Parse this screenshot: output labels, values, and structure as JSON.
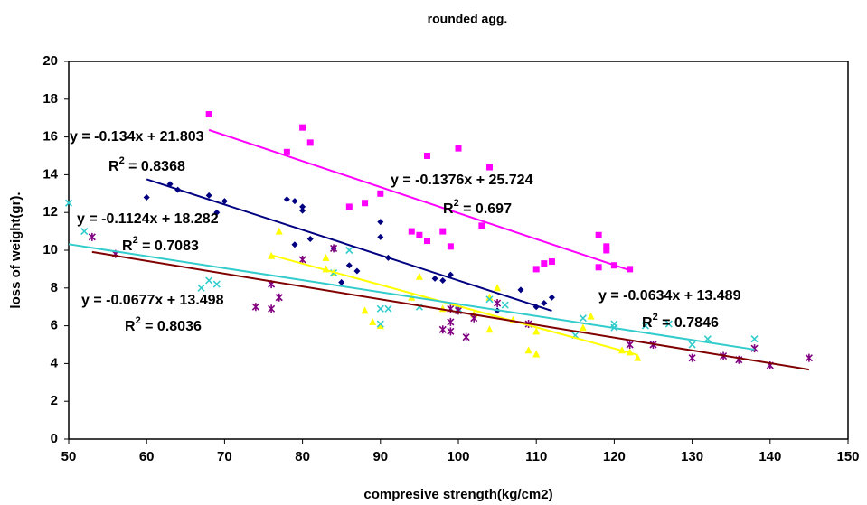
{
  "chart_data": {
    "type": "scatter",
    "title": "rounded agg.",
    "x_label": "compresive strength(kg/cm2)",
    "y_label": "loss of weight(gr).",
    "xlim": [
      50,
      150
    ],
    "xticks": [
      50,
      60,
      70,
      80,
      90,
      100,
      110,
      120,
      130,
      140,
      150
    ],
    "ylim": [
      0,
      20
    ],
    "yticks": [
      0,
      2,
      4,
      6,
      8,
      10,
      12,
      14,
      16,
      18,
      20
    ],
    "grid": false,
    "series": [
      {
        "color": "#ff00ff",
        "marker": "square",
        "x": [
          68,
          78,
          80,
          81,
          86,
          88,
          90,
          94,
          95,
          96,
          96,
          98,
          99,
          100,
          103,
          104,
          110,
          111,
          112,
          118,
          118,
          119,
          119,
          120,
          122
        ],
        "values": [
          17.2,
          15.2,
          16.5,
          15.7,
          12.3,
          12.5,
          13.0,
          11.0,
          10.8,
          10.5,
          15.0,
          11.0,
          10.2,
          15.4,
          11.3,
          14.4,
          9.0,
          9.3,
          9.4,
          10.8,
          9.1,
          10.2,
          10.0,
          9.2,
          9.0
        ],
        "trend": {
          "x": [
            68,
            122
          ],
          "values": [
            16.37,
            8.94
          ]
        },
        "annotation": {
          "equation": "y = -0.1376x + 25.724",
          "r2": [
            "R",
            "2",
            " = 0.697"
          ]
        }
      },
      {
        "color": "#000080",
        "marker": "diamond",
        "x": [
          60,
          63,
          64,
          68,
          69,
          70,
          78,
          79,
          79,
          80,
          80,
          81,
          84,
          85,
          86,
          87,
          90,
          90,
          91,
          97,
          98,
          99,
          105,
          108,
          110,
          111,
          112
        ],
        "values": [
          12.8,
          13.5,
          13.2,
          12.9,
          12.0,
          12.6,
          12.7,
          12.6,
          10.3,
          12.3,
          12.1,
          10.6,
          10.1,
          8.3,
          9.2,
          8.9,
          11.5,
          10.7,
          9.6,
          8.5,
          8.4,
          8.7,
          6.8,
          7.9,
          7.0,
          7.2,
          7.5
        ],
        "trend": {
          "x": [
            60,
            112
          ],
          "values": [
            13.76,
            6.79
          ]
        },
        "annotation": {
          "equation": "y = -0.134x + 21.803",
          "r2": [
            "R",
            "2",
            " = 0.8368"
          ]
        }
      },
      {
        "color": "#ffff00",
        "marker": "triangle",
        "x": [
          76,
          77,
          83,
          83,
          84,
          88,
          89,
          90,
          94,
          95,
          98,
          100,
          102,
          104,
          104,
          105,
          107,
          109,
          110,
          110,
          116,
          117,
          121,
          122,
          123
        ],
        "values": [
          9.7,
          11.0,
          9.6,
          9.0,
          8.8,
          6.8,
          6.2,
          6.0,
          7.5,
          8.6,
          6.9,
          6.8,
          6.6,
          7.5,
          5.8,
          8.0,
          6.3,
          4.7,
          4.5,
          5.7,
          5.9,
          6.5,
          4.7,
          4.6,
          4.3
        ],
        "trend": {
          "x": [
            76,
            123
          ],
          "values": [
            9.74,
            4.46
          ]
        },
        "annotation": {
          "equation": "y = -0.1124x + 18.282",
          "r2": [
            "R",
            "2",
            " = 0.7083"
          ]
        }
      },
      {
        "color": "#33cccc",
        "marker": "x",
        "x": [
          50,
          52,
          67,
          68,
          69,
          84,
          86,
          90,
          90,
          91,
          95,
          100,
          104,
          106,
          115,
          116,
          120,
          120,
          124,
          127,
          130,
          132,
          138
        ],
        "values": [
          12.5,
          11.0,
          8.0,
          8.4,
          8.2,
          8.8,
          10.0,
          6.9,
          6.1,
          6.9,
          7.0,
          6.9,
          7.4,
          7.1,
          5.5,
          6.4,
          5.9,
          6.1,
          6.0,
          6.1,
          5.0,
          5.3,
          5.3
        ],
        "trend": {
          "x": [
            50,
            138
          ],
          "values": [
            10.32,
            4.74
          ]
        },
        "annotation": {
          "equation": "y = -0.0634x + 13.489",
          "r2": [
            "R",
            "2",
            " = 0.7846"
          ]
        }
      },
      {
        "color": "#800080",
        "trend_color": "#800000",
        "marker": "star",
        "x": [
          53,
          56,
          74,
          76,
          76,
          77,
          80,
          84,
          98,
          99,
          99,
          99,
          100,
          101,
          102,
          105,
          109,
          122,
          125,
          130,
          134,
          136,
          138,
          140,
          145
        ],
        "values": [
          10.7,
          9.8,
          7.0,
          6.9,
          8.2,
          7.5,
          9.5,
          10.1,
          5.8,
          5.7,
          6.2,
          6.9,
          6.8,
          5.4,
          6.4,
          7.2,
          6.1,
          5.0,
          5.0,
          4.3,
          4.4,
          4.2,
          4.8,
          3.9,
          4.3
        ],
        "trend": {
          "x": [
            53,
            145
          ],
          "values": [
            9.91,
            3.68
          ]
        },
        "annotation": {
          "equation": "y = -0.0677x + 13.498",
          "r2": [
            "R",
            "2",
            " = 0.8036"
          ]
        }
      }
    ]
  }
}
